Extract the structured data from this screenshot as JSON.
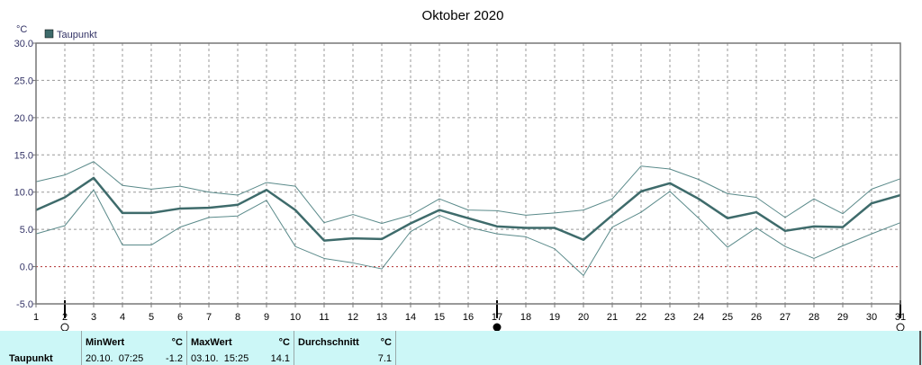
{
  "chart_data": {
    "type": "line",
    "title": "Oktober 2020",
    "ylabel": "°C",
    "ylim": [
      -5,
      30
    ],
    "yticks": [
      "30.0",
      "25.0",
      "20.0",
      "15.0",
      "10.0",
      "5.0",
      "0.0",
      "-5.0"
    ],
    "x": [
      1,
      2,
      3,
      4,
      5,
      6,
      7,
      8,
      9,
      10,
      11,
      12,
      13,
      14,
      15,
      16,
      17,
      18,
      19,
      20,
      21,
      22,
      23,
      24,
      25,
      26,
      27,
      28,
      29,
      30,
      31
    ],
    "legend": [
      "Taupunkt"
    ],
    "series": [
      {
        "name": "Taupunkt",
        "role": "mean",
        "values": [
          7.6,
          9.3,
          11.9,
          7.2,
          7.2,
          7.8,
          7.9,
          8.3,
          10.3,
          7.6,
          3.5,
          3.8,
          3.7,
          5.8,
          7.6,
          6.5,
          5.4,
          5.2,
          5.2,
          3.6,
          6.9,
          10.1,
          11.2,
          9.1,
          6.5,
          7.3,
          4.8,
          5.4,
          5.3,
          8.5,
          9.6
        ]
      },
      {
        "role": "max",
        "values": [
          11.4,
          12.3,
          14.1,
          10.9,
          10.4,
          10.8,
          10.0,
          9.6,
          11.3,
          10.8,
          5.9,
          7.0,
          5.8,
          6.9,
          9.1,
          7.6,
          7.5,
          6.9,
          7.2,
          7.6,
          9.1,
          13.5,
          13.1,
          11.7,
          9.8,
          9.3,
          6.6,
          9.1,
          7.1,
          10.4,
          11.8
        ]
      },
      {
        "role": "min",
        "values": [
          4.4,
          5.5,
          10.3,
          2.9,
          2.9,
          5.3,
          6.6,
          6.8,
          8.9,
          2.7,
          1.1,
          0.5,
          -0.3,
          4.7,
          6.9,
          5.3,
          4.4,
          4.0,
          2.4,
          -1.2,
          5.3,
          7.3,
          10.1,
          6.5,
          2.6,
          5.2,
          2.7,
          1.1,
          2.8,
          4.4,
          5.9
        ]
      }
    ],
    "zero_line": true,
    "grid": true,
    "moon_phases": [
      {
        "x": 2,
        "phase": "full-moon"
      },
      {
        "x": 17,
        "phase": "new-moon"
      },
      {
        "x": 31,
        "phase": "full-moon"
      }
    ],
    "colors": {
      "mean": "#3e6b6b",
      "band": "#5a8a8a",
      "zero": "#b03030",
      "grid": "#999999",
      "legend_box": "#3e6b6b"
    }
  },
  "stats": {
    "series_label": "Taupunkt",
    "min": {
      "header": "MinWert",
      "unit": "°C",
      "timestamp": "20.10.  07:25",
      "value": "-1.2"
    },
    "max": {
      "header": "MaxWert",
      "unit": "°C",
      "timestamp": "03.10.  15:25",
      "value": "14.1"
    },
    "avg": {
      "header": "Durchschnitt",
      "unit": "°C",
      "value": "7.1"
    }
  }
}
